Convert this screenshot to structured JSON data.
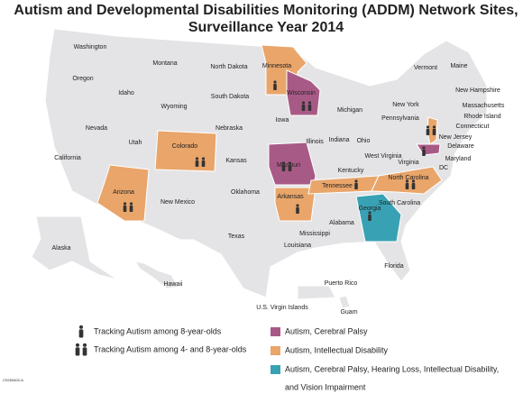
{
  "title": [
    "Autism and Developmental Disabilities Monitoring (ADDM) Network Sites,",
    "Surveillance Year 2014"
  ],
  "states": [
    "Washington",
    "Oregon",
    "California",
    "Nevada",
    "Idaho",
    "Montana",
    "Wyoming",
    "Utah",
    "Colorado",
    "Arizona",
    "New Mexico",
    "North Dakota",
    "South Dakota",
    "Nebraska",
    "Kansas",
    "Oklahoma",
    "Texas",
    "Minnesota",
    "Iowa",
    "Missouri",
    "Arkansas",
    "Louisiana",
    "Mississippi",
    "Wisconsin",
    "Illinois",
    "Michigan",
    "Indiana",
    "Ohio",
    "Kentucky",
    "Tennessee",
    "Alabama",
    "Georgia",
    "Florida",
    "South Carolina",
    "North Carolina",
    "Virginia",
    "West Virginia",
    "Pennsylvania",
    "New York",
    "Vermont",
    "Maine",
    "New Hampshire",
    "Massachusetts",
    "Rhode Island",
    "Connecticut",
    "New Jersey",
    "Delaware",
    "Maryland",
    "DC",
    "Alaska",
    "Hawaii",
    "Puerto Rico",
    "U.S. Virgin Islands",
    "Guam"
  ],
  "legend": {
    "icons": [
      "Tracking Autism among 8-year-olds",
      "Tracking Autism among 4- and 8-year-olds"
    ],
    "categories": [
      {
        "lines": [
          "Autism, Cerebral Palsy"
        ],
        "color": "#a85a86"
      },
      {
        "lines": [
          "Autism, Intellectual Disability"
        ],
        "color": "#e9a56a"
      },
      {
        "lines": [
          "Autism, Cerebral Palsy, Hearing Loss, Intellectual Disability,",
          "and Vision Impairment"
        ],
        "color": "#38a2b4"
      }
    ]
  },
  "figure_id": "CS253402-A"
}
